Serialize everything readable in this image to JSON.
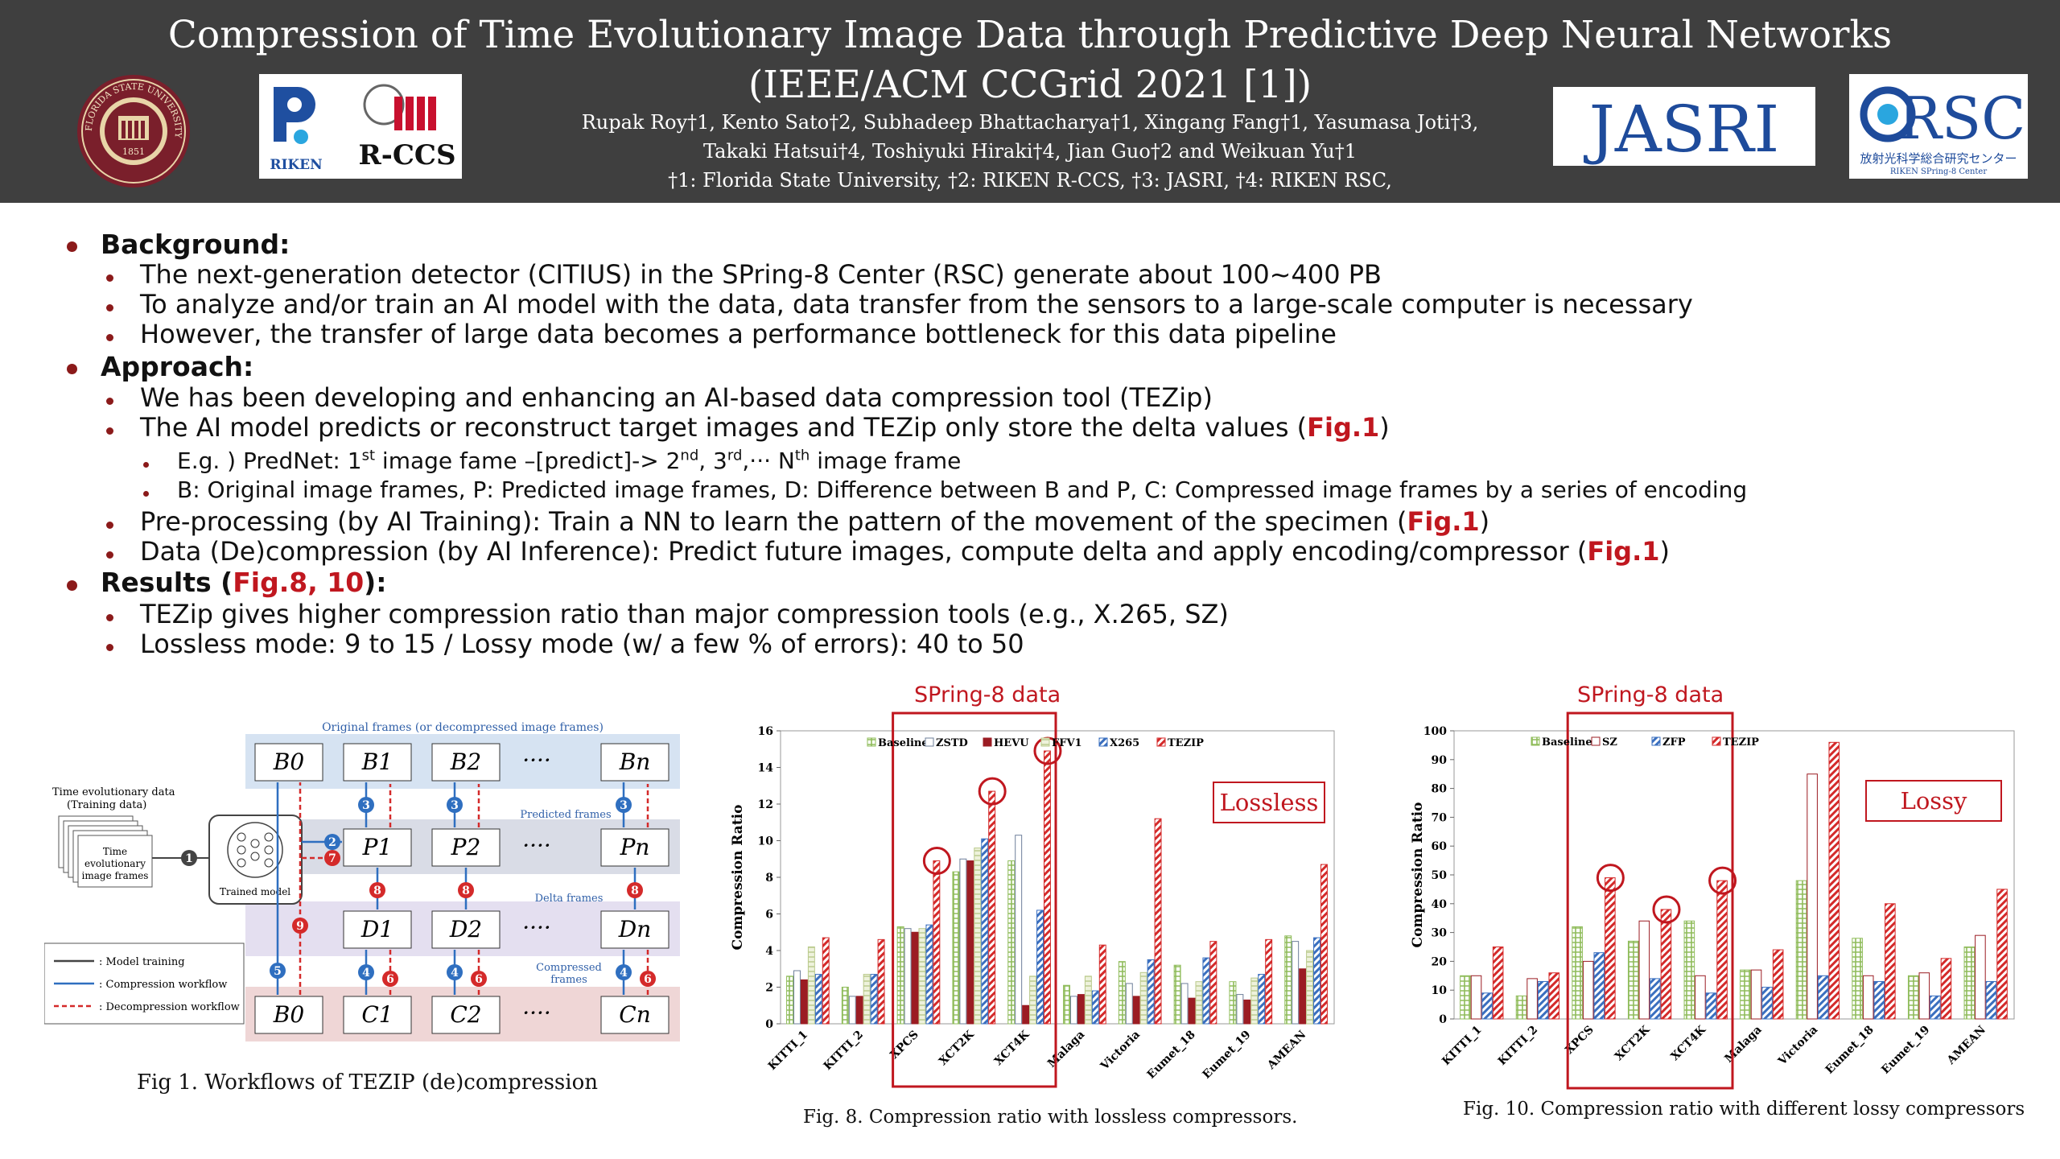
{
  "header": {
    "title_line1": "Compression of Time Evolutionary Image Data through Predictive Deep Neural Networks",
    "title_line2": "(IEEE/ACM CCGrid 2021 [1])",
    "authors_line1": "Rupak Roy†1, Kento Sato†2, Subhadeep Bhattacharya†1, Xingang Fang†1, Yasumasa Joti†3,",
    "authors_line2": "Takaki Hatsui†4, Toshiyuki Hiraki†4, Jian Guo†2 and Weikuan Yu†1",
    "affiliations": "†1: Florida State University, †2: RIKEN R-CCS, †3: JASRI, †4: RIKEN RSC,"
  },
  "logos": {
    "fsu_text": "FLORIDA STATE UNIVERSITY",
    "fsu_year": "1851",
    "riken_text": "RIKEN",
    "rccs_text": "R-CCS",
    "jasri_text": "JASRI",
    "rsc_text": "RSC",
    "rsc_subtext": "放射光科学総合研究センター",
    "rsc_subtext2": "RIKEN SPring-8 Center"
  },
  "bullets": {
    "background_head": "Background:",
    "bg1": "The next-generation detector (CITIUS) in the SPring-8 Center (RSC) generate about 100~400 PB",
    "bg2": "To analyze and/or train an AI model with the data, data transfer from the sensors to a large-scale computer is necessary",
    "bg3": "However, the transfer of large data becomes a performance bottleneck for this data pipeline",
    "approach_head": "Approach:",
    "ap1": "We has been developing and enhancing an AI-based data compression tool (TEZip)",
    "ap2_text": "The AI model predicts or reconstruct target images and TEZip only store the delta values (",
    "ap2_ref": "Fig.1",
    "ap2_end": ")",
    "ap2a_1": "E.g. ) PredNet: 1",
    "ap2a_st": "st",
    "ap2a_2": " image fame –[predict]-> 2",
    "ap2a_nd": "nd",
    "ap2a_3": ", 3",
    "ap2a_rd": "rd",
    "ap2a_4": ",··· N",
    "ap2a_th": "th",
    "ap2a_5": " image frame",
    "ap2b": "B: Original image frames, P: Predicted image frames, D: Difference between B and P, C: Compressed image frames by a series of encoding",
    "ap3_text": "Pre-processing (by AI Training): Train a NN to learn the pattern of the movement of the specimen (",
    "ap3_ref": "Fig.1",
    "ap3_end": ")",
    "ap4_text": "Data (De)compression (by AI Inference): Predict future images, compute delta and apply encoding/compressor (",
    "ap4_ref": "Fig.1",
    "ap4_end": ")",
    "results_head": "Results (",
    "results_ref": "Fig.8, 10",
    "results_end": "):",
    "r1": "TEZip gives higher compression ratio than major compression tools (e.g., X.265, SZ)",
    "r2": "Lossless mode: 9 to 15 / Lossy mode (w/ a few % of errors): 40 to 50"
  },
  "fig1": {
    "caption": "Fig 1. Workflows of TEZIP (de)compression",
    "original_frames_label": "Original frames (or decompressed image frames)",
    "predicted_frames_label": "Predicted frames",
    "delta_frames_label": "Delta frames",
    "compressed_frames_label_1": "Compressed",
    "compressed_frames_label_2": "frames",
    "input_label_1": "Time evolutionary data",
    "input_label_2": "(Training data)",
    "stack_label_1": "Time",
    "stack_label_2": "evolutionary",
    "stack_label_3": "image frames",
    "model_label": "Trained model",
    "legend_training": ": Model training",
    "legend_compression": ": Compression workflow",
    "legend_decompression": ": Decompression workflow",
    "row_b": [
      "B0",
      "B1",
      "B2",
      "····",
      "Bn"
    ],
    "row_p": [
      "P1",
      "P2",
      "····",
      "Pn"
    ],
    "row_d": [
      "D1",
      "D2",
      "····",
      "Dn"
    ],
    "row_c": [
      "B0",
      "C1",
      "C2",
      "····",
      "Cn"
    ],
    "step_numbers": [
      "1",
      "2",
      "3",
      "4",
      "5",
      "6",
      "7",
      "8",
      "9"
    ]
  },
  "chart_data": [
    {
      "type": "bar",
      "title": "SPring-8 data",
      "mode_label": "Lossless",
      "caption": "Fig. 8.  Compression ratio with lossless compressors.",
      "ylabel": "Compression Ratio",
      "ylim": [
        0,
        16
      ],
      "yticks": [
        0,
        2,
        4,
        6,
        8,
        10,
        12,
        14,
        16
      ],
      "categories": [
        "KITTI_1",
        "KITTI_2",
        "XPCS",
        "XCT2K",
        "XCT4K",
        "Malaga",
        "Victoria",
        "Eumet_18",
        "Eumet_19",
        "AMEAN"
      ],
      "highlighted_categories": [
        "XPCS",
        "XCT2K",
        "XCT4K"
      ],
      "circled": [
        [
          "XPCS",
          "TEZIP"
        ],
        [
          "XCT2K",
          "TEZIP"
        ],
        [
          "XCT4K",
          "TEZIP"
        ]
      ],
      "series": [
        {
          "name": "Baseline",
          "color": "#8fbc5a",
          "pattern": "grid",
          "values": [
            2.6,
            2.0,
            5.3,
            8.3,
            8.9,
            2.1,
            3.4,
            3.2,
            2.3,
            4.8
          ]
        },
        {
          "name": "ZSTD",
          "color": "#6e7f9a",
          "pattern": "outline",
          "values": [
            2.9,
            1.5,
            5.2,
            9.0,
            10.3,
            1.5,
            2.2,
            2.2,
            1.6,
            4.5
          ]
        },
        {
          "name": "HEVU",
          "color": "#9b1c23",
          "pattern": "solid",
          "values": [
            2.4,
            1.5,
            5.0,
            8.9,
            1.0,
            1.6,
            1.5,
            1.4,
            1.3,
            3.0
          ]
        },
        {
          "name": "FFV1",
          "color": "#b9c98a",
          "pattern": "light",
          "values": [
            4.2,
            2.7,
            5.2,
            9.6,
            2.6,
            2.6,
            2.8,
            2.3,
            2.5,
            4.0
          ]
        },
        {
          "name": "X265",
          "color": "#3a6fbf",
          "pattern": "stripe",
          "values": [
            2.7,
            2.7,
            5.4,
            10.1,
            6.2,
            1.8,
            3.5,
            3.6,
            2.7,
            4.7
          ]
        },
        {
          "name": "TEZIP",
          "color": "#d42a2a",
          "pattern": "stripe-red",
          "values": [
            4.7,
            4.6,
            8.9,
            12.7,
            14.9,
            4.3,
            11.2,
            4.5,
            4.6,
            8.7
          ]
        }
      ]
    },
    {
      "type": "bar",
      "title": "SPring-8 data",
      "mode_label": "Lossy",
      "caption": "Fig. 10.  Compression ratio with different lossy compressors",
      "ylabel": "Compression Ratio",
      "ylim": [
        0,
        100
      ],
      "yticks": [
        0,
        10,
        20,
        30,
        40,
        50,
        60,
        70,
        80,
        90,
        100
      ],
      "categories": [
        "KITTI_1",
        "KITTI_2",
        "XPCS",
        "XCT2K",
        "XCT4K",
        "Malaga",
        "Victoria",
        "Eumet_18",
        "Eumet_19",
        "AMEAN"
      ],
      "highlighted_categories": [
        "XPCS",
        "XCT2K",
        "XCT4K"
      ],
      "circled": [
        [
          "XPCS",
          "TEZIP"
        ],
        [
          "XCT2K",
          "TEZIP"
        ],
        [
          "XCT4K",
          "TEZIP"
        ]
      ],
      "series": [
        {
          "name": "Baseline",
          "color": "#8fbc5a",
          "pattern": "grid",
          "values": [
            15,
            8,
            32,
            27,
            34,
            17,
            48,
            28,
            15,
            25
          ]
        },
        {
          "name": "SZ",
          "color": "#9b1c23",
          "pattern": "outline",
          "values": [
            15,
            14,
            20,
            34,
            15,
            17,
            85,
            15,
            16,
            29
          ]
        },
        {
          "name": "ZFP",
          "color": "#3a6fbf",
          "pattern": "stripe",
          "values": [
            9,
            13,
            23,
            14,
            9,
            11,
            15,
            13,
            8,
            13
          ]
        },
        {
          "name": "TEZIP",
          "color": "#d42a2a",
          "pattern": "stripe-red",
          "values": [
            25,
            16,
            49,
            38,
            48,
            24,
            96,
            40,
            21,
            45
          ]
        }
      ]
    }
  ]
}
